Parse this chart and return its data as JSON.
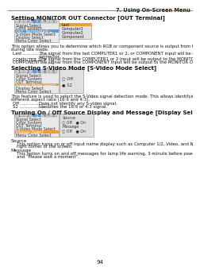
{
  "page_header": "7. Using On-Screen Menu",
  "header_line_color": "#5b9bd5",
  "background_color": "#ffffff",
  "page_number": "94",
  "section1_title": "Setting MONITOR OUT Connector [OUT Terminal]",
  "section1_menu": {
    "tabs": [
      "1",
      "2",
      "3",
      "4",
      "5"
    ],
    "active_tab": 2,
    "tab_active_color": "#5b9bd5",
    "active_item": 2,
    "active_item_color": "#5b9bd5",
    "items": [
      "Signal Select",
      "Color System",
      "OUT Terminal",
      "S-Video Mode Select",
      "Display Select",
      "Menu Color Select"
    ],
    "sub_label": "Last",
    "sub_items": [
      "Last",
      "Computer1",
      "Computer2",
      "Component"
    ],
    "sub_active_item": 0,
    "sub_active_item_color": "#f0a030"
  },
  "section1_body1": "This option allows you to determine which RGB or component source is output from the MONITOR OUT connector",
  "section1_body2": "during Idle mode.",
  "section1_d1a": "Last ....................",
  "section1_d1b": "The signal from the last COMPUTER1 or 2, or COMPONENT input will be output to the MONITOR OUT",
  "section1_d1c": "connector.",
  "section1_d2a": "COMPUTER 1, 2 ....",
  "section1_d2b": "The signal from the COMPUTER1 or 2 input will be output to the MONITOR OUT connector.",
  "section1_d3a": "COMPONENT ........",
  "section1_d3b": "The signal from the COMPONENT input will be output to the MONITOR OUT connector.",
  "section2_title": "Selecting S-Video Mode [S-Video Mode Select]",
  "section2_menu": {
    "tabs": [
      "1",
      "2",
      "3",
      "4",
      "5"
    ],
    "active_tab": 2,
    "active_item": 3,
    "active_item_color": "#f0a030",
    "items": [
      "Signal Select",
      "Color System",
      "OUT Terminal",
      "S-Video Mode Select",
      "Display Select",
      "Menu Color Select"
    ],
    "sub_items": [
      "○ Off",
      "● S2"
    ],
    "sub_active": 1
  },
  "section2_body1": "This feature is used to select the S-Video signal detection mode. This allows identifying of the S-Video signals with",
  "section2_body2": "different aspect ratio (16:9 and 4:3).",
  "section2_d1a": "Off ......................",
  "section2_d1b": "Does not identify any S-video signal.",
  "section2_d2a": "S2 .......................",
  "section2_d2b": "Identifies the 16:9 or 4:3 signal.",
  "section3_title": "Turning On / Off Source Display and Message [Display Select]",
  "section3_menu": {
    "tabs": [
      "1",
      "2",
      "3",
      "4",
      "5"
    ],
    "active_tab": 2,
    "active_item": 4,
    "active_item_color": "#f0a030",
    "items": [
      "Signal Select",
      "Color System",
      "OUT Terminal",
      "S-Video Mode Select",
      "Display Select",
      "Menu Color Select"
    ],
    "sub_content": [
      "Source",
      "○ Off   ● On",
      "Message",
      "○ Off   ● On"
    ]
  },
  "section3_src_title": "Source",
  "section3_src_body1": "    This option turns on or off input name display such as Computer 1/2, Video, and No Input to be displayed in the top",
  "section3_src_body2": "    right corner of the screen.",
  "section3_msg_title": "Message",
  "section3_msg_body1": "    This option turns on and off messages for lamp life warning, 3-minute before power off time, “Please clean filter”",
  "section3_msg_body2": "    and “Please wait a moment”."
}
